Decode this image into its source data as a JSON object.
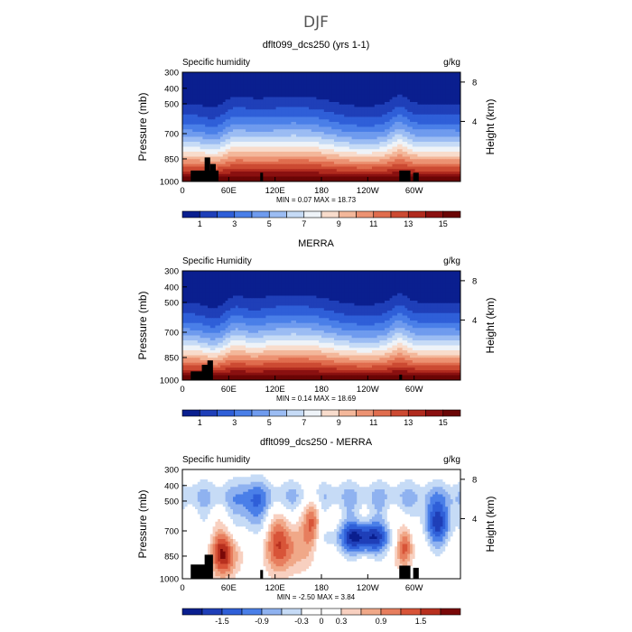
{
  "page_title": "DJF",
  "chart_data": [
    {
      "type": "heatmap",
      "title": "dflt099_dcs250 (yrs 1-1)",
      "left_label": "Specific humidity",
      "right_label": "g/kg",
      "ylabel": "Pressure (mb)",
      "ylabel_right": "Height (km)",
      "x_ticks": [
        "0",
        "60E",
        "120E",
        "180",
        "120W",
        "60W"
      ],
      "y_ticks": [
        "300",
        "400",
        "500",
        "700",
        "850",
        "1000"
      ],
      "y2_ticks": [
        "8",
        "4"
      ],
      "stats": "MIN =    0.07   MAX =   18.73",
      "colorbar_labels": [
        "1",
        "3",
        "5",
        "7",
        "9",
        "11",
        "13",
        "15"
      ],
      "colorbar_colors": [
        "#0a1f8f",
        "#1f3fb8",
        "#2f5fd8",
        "#4a7fe8",
        "#6f9bee",
        "#9bbcf3",
        "#c6dbf6",
        "#eef3f8",
        "#f8dccc",
        "#f3b79a",
        "#ec9272",
        "#e06d4e",
        "#cc4a32",
        "#b02a1e",
        "#8a1010",
        "#6a0505"
      ],
      "cmin": 0,
      "cmax": 16
    },
    {
      "type": "heatmap",
      "title": "MERRA",
      "left_label": "Specific Humidity",
      "right_label": "g/kg",
      "ylabel": "Pressure (mb)",
      "ylabel_right": "Height (km)",
      "x_ticks": [
        "0",
        "60E",
        "120E",
        "180",
        "120W",
        "60W"
      ],
      "y_ticks": [
        "300",
        "400",
        "500",
        "700",
        "850",
        "1000"
      ],
      "y2_ticks": [
        "8",
        "4"
      ],
      "stats": "MIN =    0.14   MAX =   18.69",
      "colorbar_labels": [
        "1",
        "3",
        "5",
        "7",
        "9",
        "11",
        "13",
        "15"
      ],
      "colorbar_colors": [
        "#0a1f8f",
        "#1f3fb8",
        "#2f5fd8",
        "#4a7fe8",
        "#6f9bee",
        "#9bbcf3",
        "#c6dbf6",
        "#eef3f8",
        "#f8dccc",
        "#f3b79a",
        "#ec9272",
        "#e06d4e",
        "#cc4a32",
        "#b02a1e",
        "#8a1010",
        "#6a0505"
      ],
      "cmin": 0,
      "cmax": 16
    },
    {
      "type": "heatmap",
      "title": "dflt099_dcs250 - MERRA",
      "left_label": "Specific humidity",
      "right_label": "g/kg",
      "ylabel": "Pressure (mb)",
      "ylabel_right": "Height (km)",
      "x_ticks": [
        "0",
        "60E",
        "120E",
        "180",
        "120W",
        "60W"
      ],
      "y_ticks": [
        "300",
        "400",
        "500",
        "700",
        "850",
        "1000"
      ],
      "y2_ticks": [
        "8",
        "4"
      ],
      "stats": "MIN =   -2.50   MAX =    3.84",
      "colorbar_labels": [
        "-1.5",
        "-0.9",
        "-0.3",
        "0",
        "0.3",
        "0.9",
        "1.5"
      ],
      "colorbar_colors": [
        "#0a1f8f",
        "#1f3fb8",
        "#2f5fd8",
        "#4a7fe8",
        "#8fb2f0",
        "#c6dbf6",
        "#ffffff",
        "#ffffff",
        "#f8d0c0",
        "#f0a888",
        "#e77e5e",
        "#d85438",
        "#b8301f",
        "#7a0808"
      ],
      "cmin": -2.1,
      "cmax": 2.1
    }
  ]
}
